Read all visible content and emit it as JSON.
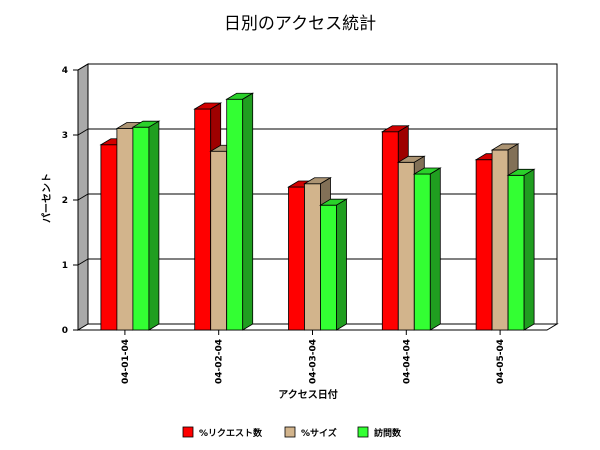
{
  "chart_data": {
    "type": "bar",
    "title": "日別のアクセス統計",
    "xlabel": "アクセス日付",
    "ylabel": "パーセント",
    "categories": [
      "04-01-04",
      "04-02-04",
      "04-03-04",
      "04-04-04",
      "04-05-04"
    ],
    "ylim": [
      0,
      4
    ],
    "yticks": [
      "0",
      "1",
      "2",
      "3",
      "4"
    ],
    "grid": true,
    "legend_position": "bottom",
    "series": [
      {
        "name": "%リクエスト数",
        "color": "#ff0000",
        "values": [
          2.85,
          3.4,
          2.2,
          3.05,
          2.62
        ]
      },
      {
        "name": "%サイズ",
        "color": "#d2b48c",
        "values": [
          3.1,
          2.75,
          2.25,
          2.58,
          2.77
        ]
      },
      {
        "name": "訪問数",
        "color": "#33ff33",
        "values": [
          3.12,
          3.55,
          1.92,
          2.4,
          2.38
        ]
      }
    ]
  }
}
